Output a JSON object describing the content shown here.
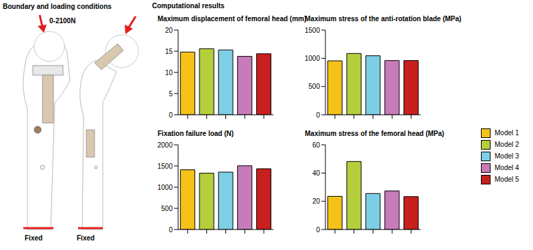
{
  "left_panel": {
    "title": "Boundary and loading conditions",
    "load_label": "0-2100N",
    "support_labels": [
      "Fixed",
      "Fixed"
    ]
  },
  "right_panel": {
    "title": "Computational results"
  },
  "chart_data": [
    {
      "type": "bar",
      "title": "Maximum displacement of femoral head (mm)",
      "categories": [
        "Model 1",
        "Model 2",
        "Model 3",
        "Model 4",
        "Model 5"
      ],
      "values": [
        14.8,
        15.6,
        15.3,
        13.8,
        14.4
      ],
      "colors": [
        "#f5c21a",
        "#b5cf3c",
        "#7dcfe6",
        "#c77bb8",
        "#c8201e"
      ],
      "ylim": [
        0,
        20
      ],
      "yticks": [
        0,
        5,
        10,
        15,
        20
      ],
      "tick_labels": "y",
      "legend": "right"
    },
    {
      "type": "bar",
      "title": "Maximum stress of the anti-rotation blade (MPa)",
      "categories": [
        "Model 1",
        "Model 2",
        "Model 3",
        "Model 4",
        "Model 5"
      ],
      "values": [
        955,
        1085,
        1045,
        960,
        960
      ],
      "colors": [
        "#f5c21a",
        "#b5cf3c",
        "#7dcfe6",
        "#c77bb8",
        "#c8201e"
      ],
      "ylim": [
        0,
        1500
      ],
      "yticks": [
        0,
        500,
        1000,
        1500
      ],
      "tick_labels": "y",
      "legend": "right"
    },
    {
      "type": "bar",
      "title": "Fixation failure load (N)",
      "categories": [
        "Model 1",
        "Model 2",
        "Model 3",
        "Model 4",
        "Model 5"
      ],
      "values": [
        1410,
        1330,
        1355,
        1505,
        1435
      ],
      "colors": [
        "#f5c21a",
        "#b5cf3c",
        "#7dcfe6",
        "#c77bb8",
        "#c8201e"
      ],
      "ylim": [
        0,
        2000
      ],
      "yticks": [
        0,
        500,
        1000,
        1500,
        2000
      ],
      "tick_labels": "y",
      "legend": "right"
    },
    {
      "type": "bar",
      "title": "Maximum stress of the femoral head (MPa)",
      "categories": [
        "Model 1",
        "Model 2",
        "Model 3",
        "Model 4",
        "Model 5"
      ],
      "values": [
        23.5,
        48.2,
        25.5,
        27.3,
        23.3
      ],
      "colors": [
        "#f5c21a",
        "#b5cf3c",
        "#7dcfe6",
        "#c77bb8",
        "#c8201e"
      ],
      "ylim": [
        0,
        60
      ],
      "yticks": [
        0,
        20,
        40,
        60
      ],
      "tick_labels": "y",
      "legend": "right"
    }
  ]
}
